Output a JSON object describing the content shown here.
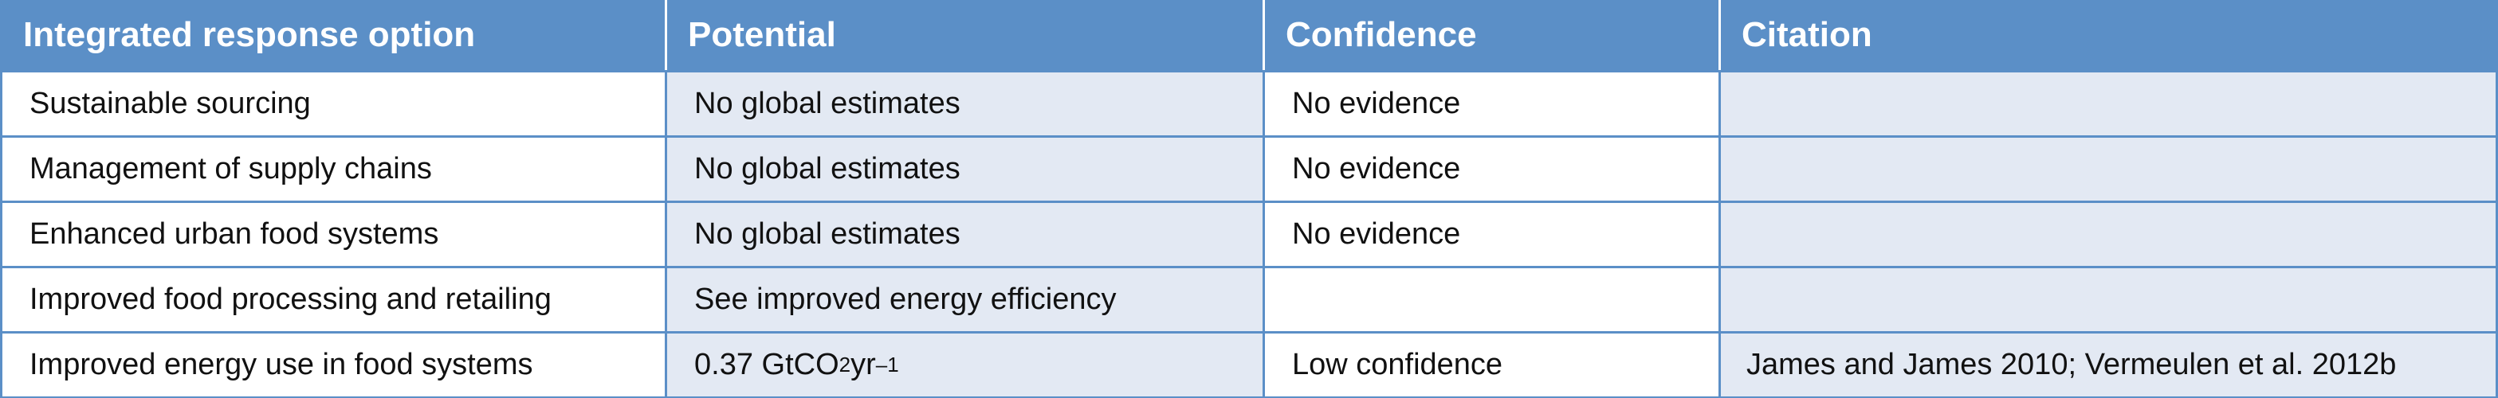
{
  "headers": {
    "option": "Integrated response option",
    "potential": "Potential",
    "confidence": "Confidence",
    "citation": "Citation"
  },
  "rows": [
    {
      "option": "Sustainable sourcing",
      "potential": "No global estimates",
      "confidence": "No evidence",
      "citation": ""
    },
    {
      "option": "Management of supply chains",
      "potential": "No global estimates",
      "confidence": "No evidence",
      "citation": ""
    },
    {
      "option": "Enhanced urban food systems",
      "potential": "No global estimates",
      "confidence": "No evidence",
      "citation": ""
    },
    {
      "option": "Improved food processing and retailing",
      "potential": "See improved energy efficiency",
      "confidence": "",
      "citation": ""
    },
    {
      "option": "Improved energy use in food systems",
      "potential_parts": {
        "value": "0.37 GtCO",
        "subscript": "2",
        "unit": " yr",
        "superscript": "–1"
      },
      "confidence": "Low confidence",
      "citation": "James and James 2010; Vermeulen et al. 2012b"
    }
  ],
  "colors": {
    "header_bg": "#5b8fc7",
    "header_text": "#ffffff",
    "shaded_cell": "#e3e9f3",
    "border": "#5b8fc7"
  }
}
